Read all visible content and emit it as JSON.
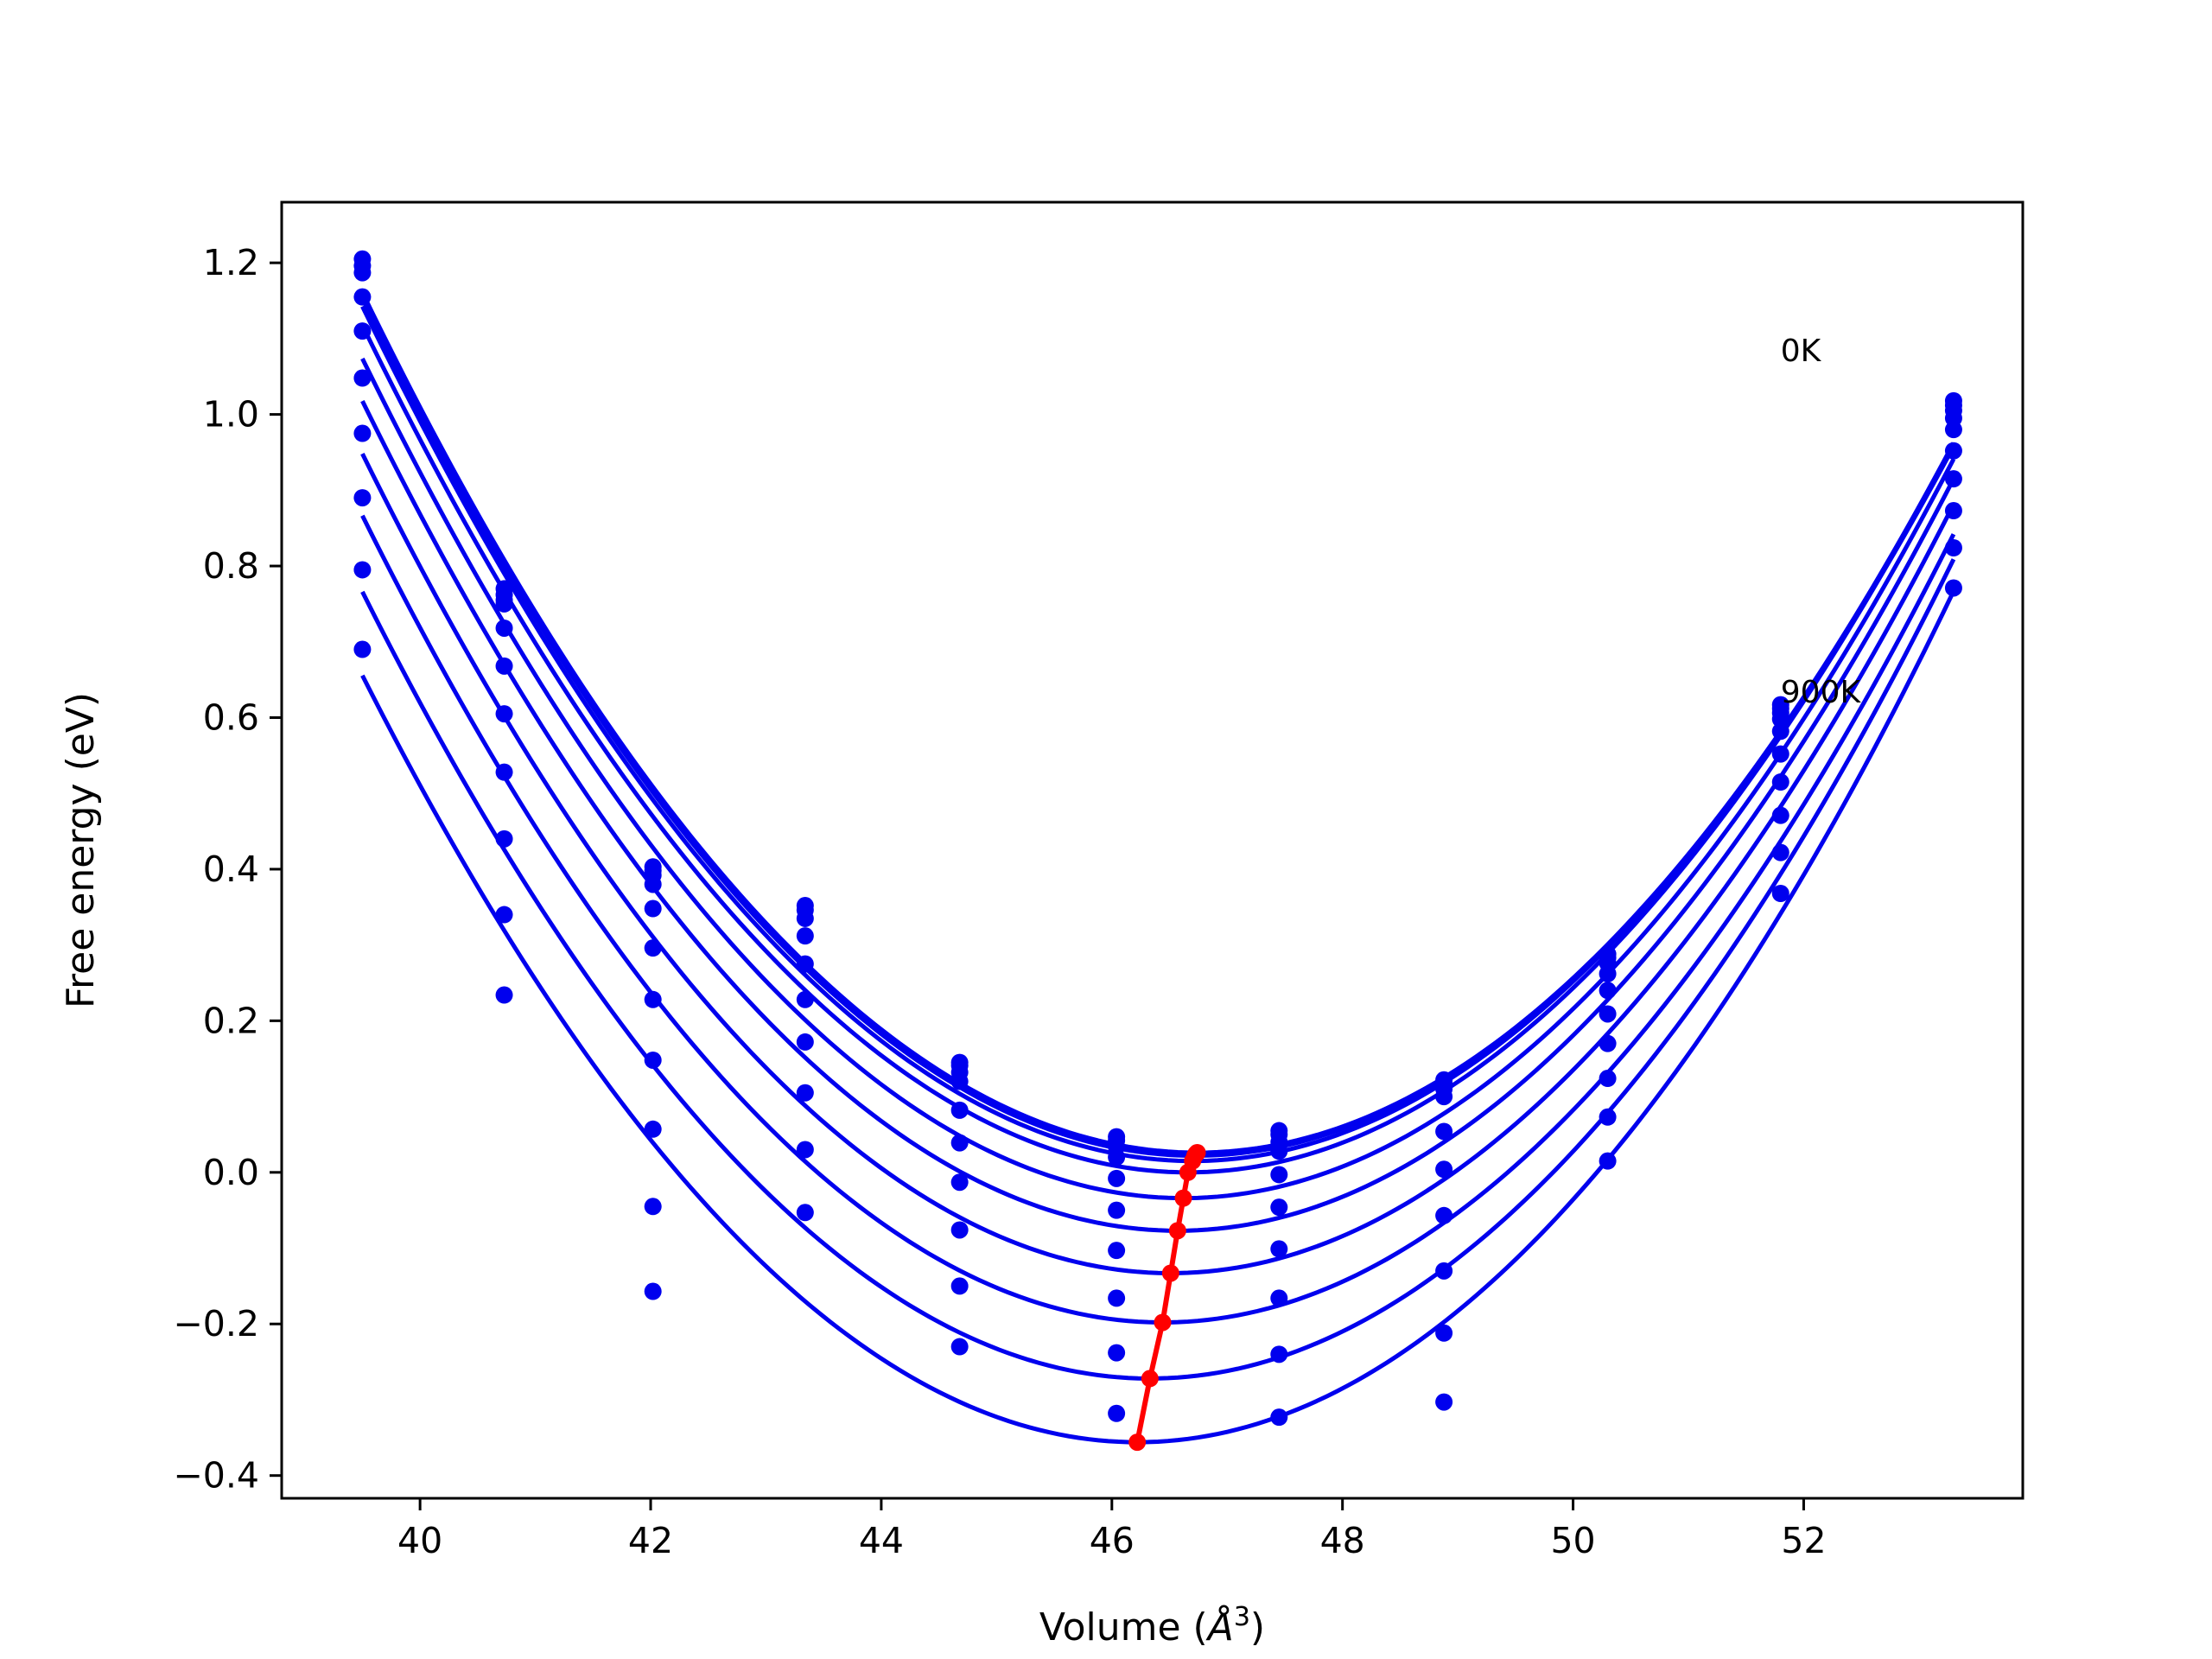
{
  "chart_data": {
    "type": "scatter",
    "title": "",
    "xlabel": "Volume (",
    "xlabel_symbol": "Å",
    "xlabel_exp": "3",
    "xlabel_close": ")",
    "ylabel": "Free energy (eV)",
    "xlim": [
      38.8,
      53.9
    ],
    "ylim": [
      -0.43,
      1.28
    ],
    "xticks": [
      40,
      42,
      44,
      46,
      48,
      50,
      52
    ],
    "yticks": [
      -0.4,
      -0.2,
      0.0,
      0.2,
      0.4,
      0.6,
      0.8,
      1.0,
      1.2
    ],
    "ytick_labels": [
      "−0.4",
      "−0.2",
      "0.0",
      "0.2",
      "0.4",
      "0.6",
      "0.8",
      "1.0",
      "1.2"
    ],
    "xtick_labels": [
      "40",
      "42",
      "44",
      "46",
      "48",
      "50",
      "52"
    ],
    "grid": false,
    "annotations": [
      {
        "text": "0K",
        "x": 51.8,
        "y": 1.07
      },
      {
        "text": "900K",
        "x": 51.8,
        "y": 0.62
      }
    ],
    "volumes": [
      39.5,
      40.73,
      42.02,
      43.34,
      44.68,
      46.04,
      47.45,
      48.88,
      50.3,
      51.8,
      53.3
    ],
    "fit_x_range": [
      39.5,
      53.3
    ],
    "series": [
      {
        "a": 0.02165,
        "v0": 46.74,
        "e0": 0.026,
        "points": [
          1.205,
          0.77,
          0.403,
          0.352,
          0.145,
          0.047,
          0.055,
          0.122,
          0.288,
          0.617,
          1.018
        ]
      },
      {
        "a": 0.02168,
        "v0": 46.73,
        "e0": 0.0245,
        "points": [
          1.196,
          0.762,
          0.398,
          0.346,
          0.141,
          0.042,
          0.05,
          0.117,
          0.283,
          0.612,
          1.012
        ]
      },
      {
        "a": 0.0217,
        "v0": 46.72,
        "e0": 0.022,
        "points": [
          1.187,
          0.755,
          0.392,
          0.335,
          0.132,
          0.034,
          0.04,
          0.11,
          0.276,
          0.606,
          1.005
        ]
      },
      {
        "a": 0.02175,
        "v0": 46.7,
        "e0": 0.015,
        "points": [
          1.155,
          0.75,
          0.38,
          0.312,
          0.12,
          0.02,
          0.028,
          0.1,
          0.262,
          0.598,
          0.995
        ]
      },
      {
        "a": 0.0218,
        "v0": 46.66,
        "e0": 0.0,
        "points": [
          1.11,
          0.718,
          0.348,
          0.275,
          0.082,
          -0.008,
          -0.003,
          0.054,
          0.24,
          0.582,
          0.98
        ]
      },
      {
        "a": 0.02185,
        "v0": 46.62,
        "e0": -0.034,
        "points": [
          1.048,
          0.668,
          0.296,
          0.228,
          0.039,
          -0.05,
          -0.046,
          0.004,
          0.209,
          0.552,
          0.952
        ]
      },
      {
        "a": 0.0219,
        "v0": 46.57,
        "e0": -0.077,
        "points": [
          0.975,
          0.605,
          0.228,
          0.172,
          -0.013,
          -0.103,
          -0.101,
          -0.057,
          0.17,
          0.515,
          0.915
        ]
      },
      {
        "a": 0.022,
        "v0": 46.51,
        "e0": -0.133,
        "points": [
          0.89,
          0.528,
          0.148,
          0.105,
          -0.076,
          -0.166,
          -0.166,
          -0.13,
          0.124,
          0.471,
          0.873
        ]
      },
      {
        "a": 0.0221,
        "v0": 46.44,
        "e0": -0.198,
        "points": [
          0.795,
          0.44,
          0.057,
          0.03,
          -0.15,
          -0.238,
          -0.24,
          -0.212,
          0.073,
          0.422,
          0.824
        ]
      },
      {
        "a": 0.02225,
        "v0": 46.33,
        "e0": -0.272,
        "points": [
          0.69,
          0.34,
          -0.045,
          -0.053,
          -0.23,
          -0.318,
          -0.323,
          -0.303,
          0.015,
          0.368,
          0.771
        ]
      },
      {
        "a": 0.0224,
        "v0": 46.22,
        "e0": -0.356,
        "points": [
          null,
          0.234,
          -0.157,
          null,
          null,
          null,
          null,
          null,
          null,
          null,
          null
        ]
      }
    ],
    "minima_line": {
      "x": [
        46.74,
        46.73,
        46.72,
        46.7,
        46.66,
        46.62,
        46.57,
        46.51,
        46.44,
        46.33,
        46.22
      ],
      "y": [
        0.026,
        0.0245,
        0.022,
        0.015,
        0.0,
        -0.034,
        -0.077,
        -0.133,
        -0.198,
        -0.272,
        -0.356
      ]
    },
    "colors": {
      "fit": "#0000ee",
      "points": "#0000ee",
      "minima": "#ff0000",
      "axes": "#000000"
    }
  }
}
